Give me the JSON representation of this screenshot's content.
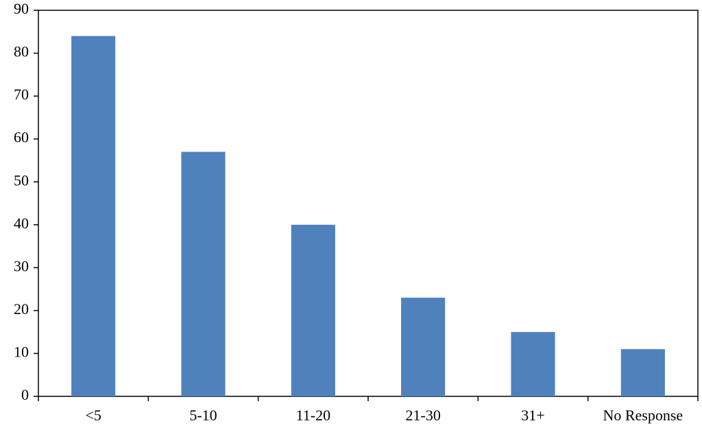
{
  "chart_data": {
    "type": "bar",
    "categories": [
      "<5",
      "5-10",
      "11-20",
      "21-30",
      "31+",
      "No Response"
    ],
    "values": [
      84,
      57,
      40,
      23,
      15,
      11
    ],
    "color": "#4f81bd",
    "ylim": [
      0,
      90
    ],
    "yticks": [
      0,
      10,
      20,
      30,
      40,
      50,
      60,
      70,
      80,
      90
    ],
    "grid": false
  }
}
